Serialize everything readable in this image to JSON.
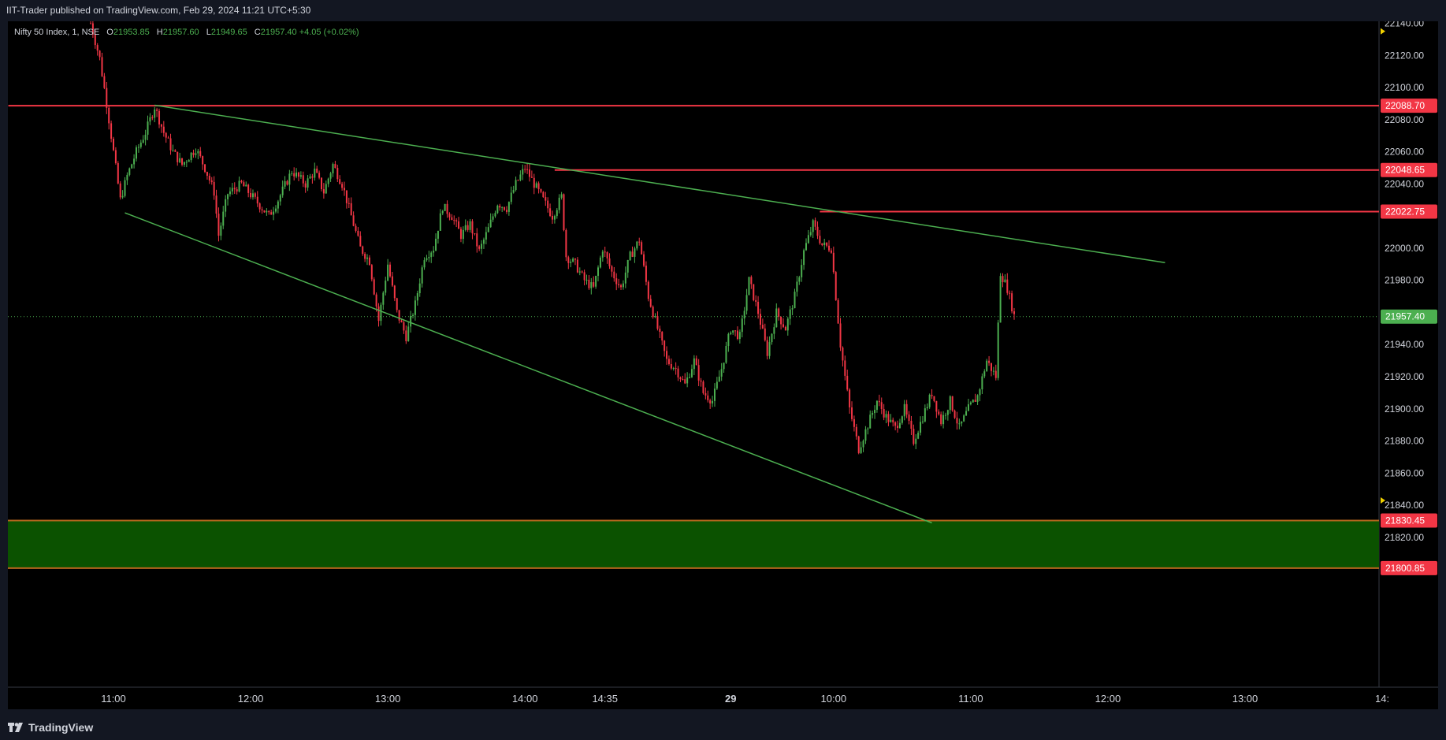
{
  "header": {
    "published": "IIT-Trader published on TradingView.com, Feb 29, 2024 11:21 UTC+5:30"
  },
  "legend": {
    "symbol": "Nifty 50 Index, 1, NSE",
    "o_label": "O",
    "o": "21953.85",
    "h_label": "H",
    "h": "21957.60",
    "l_label": "L",
    "l": "21949.65",
    "c_label": "C",
    "c": "21957.40",
    "change": "+4.05 (+0.02%)"
  },
  "footer": {
    "brand": "TradingView",
    "logo_icon": "tradingview-logo-icon"
  },
  "colors": {
    "up": "#4caf50",
    "down": "#f23645",
    "trend": "#4caf50",
    "level": "#f23645",
    "zone": "#0b5200",
    "zone_border": "#b5651d",
    "current": "#4caf50",
    "bg": "#000000"
  },
  "chart_data": {
    "type": "candlestick",
    "ylim": [
      21790,
      22145
    ],
    "y_ticks": [
      22140,
      22120,
      22100,
      22080,
      22060,
      22040,
      22000,
      21980,
      21940,
      21920,
      21900,
      21880,
      21860,
      21840,
      21820
    ],
    "y_tick_labels": [
      "22140.00",
      "22120.00",
      "22100.00",
      "22080.00",
      "22060.00",
      "22040.00",
      "22000.00",
      "21980.00",
      "21940.00",
      "21920.00",
      "21900.00",
      "21880.00",
      "21860.00",
      "21840.00",
      "21820.00"
    ],
    "x_ticks": [
      {
        "label": "11:00",
        "x": 0.0
      },
      {
        "label": "12:00",
        "x": 60
      },
      {
        "label": "13:00",
        "x": 120
      },
      {
        "label": "14:00",
        "x": 180
      },
      {
        "label": "14:35",
        "x": 215
      },
      {
        "label": "29",
        "x": 270,
        "bold": true
      },
      {
        "label": "10:00",
        "x": 315
      },
      {
        "label": "11:00",
        "x": 375
      },
      {
        "label": "12:00",
        "x": 435
      },
      {
        "label": "13:00",
        "x": 495
      },
      {
        "label": "14:",
        "x": 555
      }
    ],
    "x_range": [
      -46,
      557
    ],
    "current_price": 21957.4,
    "horizontal_levels": [
      {
        "price": 22088.7,
        "label": "22088.70",
        "from": -46
      },
      {
        "price": 22048.65,
        "label": "22048.65",
        "from": 193
      },
      {
        "price": 22022.75,
        "label": "22022.75",
        "from": 309
      }
    ],
    "zone": {
      "top": 21830.45,
      "bottom": 21800.85,
      "top_label": "21830.45",
      "bottom_label": "21800.85"
    },
    "trendlines": [
      {
        "x1": 18,
        "y1": 22089,
        "x2": 460,
        "y2": 21991
      },
      {
        "x1": 5,
        "y1": 22022,
        "x2": 358,
        "y2": 21829
      }
    ],
    "anchors": [
      [
        -10,
        22140
      ],
      [
        -6,
        22118
      ],
      [
        -3,
        22090
      ],
      [
        0,
        22060
      ],
      [
        3,
        22030
      ],
      [
        6,
        22045
      ],
      [
        10,
        22060
      ],
      [
        14,
        22072
      ],
      [
        18,
        22088
      ],
      [
        22,
        22072
      ],
      [
        26,
        22060
      ],
      [
        30,
        22052
      ],
      [
        36,
        22062
      ],
      [
        40,
        22050
      ],
      [
        44,
        22035
      ],
      [
        46,
        22008
      ],
      [
        50,
        22034
      ],
      [
        56,
        22040
      ],
      [
        62,
        22030
      ],
      [
        68,
        22020
      ],
      [
        72,
        22030
      ],
      [
        78,
        22048
      ],
      [
        84,
        22040
      ],
      [
        88,
        22048
      ],
      [
        92,
        22035
      ],
      [
        96,
        22052
      ],
      [
        100,
        22040
      ],
      [
        104,
        22020
      ],
      [
        108,
        22000
      ],
      [
        112,
        21992
      ],
      [
        116,
        21955
      ],
      [
        120,
        21990
      ],
      [
        124,
        21960
      ],
      [
        128,
        21945
      ],
      [
        132,
        21965
      ],
      [
        136,
        21995
      ],
      [
        140,
        22000
      ],
      [
        144,
        22026
      ],
      [
        148,
        22020
      ],
      [
        152,
        22008
      ],
      [
        156,
        22015
      ],
      [
        160,
        21998
      ],
      [
        164,
        22012
      ],
      [
        168,
        22028
      ],
      [
        172,
        22025
      ],
      [
        176,
        22040
      ],
      [
        180,
        22050
      ],
      [
        184,
        22040
      ],
      [
        188,
        22030
      ],
      [
        192,
        22020
      ],
      [
        196,
        22032
      ],
      [
        198,
        21995
      ],
      [
        202,
        21990
      ],
      [
        206,
        21980
      ],
      [
        210,
        21975
      ],
      [
        214,
        22000
      ],
      [
        218,
        21985
      ],
      [
        222,
        21975
      ],
      [
        226,
        21995
      ],
      [
        230,
        22005
      ],
      [
        234,
        21970
      ],
      [
        238,
        21950
      ],
      [
        242,
        21930
      ],
      [
        246,
        21925
      ],
      [
        250,
        21915
      ],
      [
        254,
        21930
      ],
      [
        258,
        21910
      ],
      [
        262,
        21905
      ],
      [
        266,
        21925
      ],
      [
        270,
        21950
      ],
      [
        274,
        21945
      ],
      [
        278,
        21980
      ],
      [
        282,
        21960
      ],
      [
        286,
        21935
      ],
      [
        290,
        21960
      ],
      [
        294,
        21950
      ],
      [
        298,
        21970
      ],
      [
        302,
        21998
      ],
      [
        306,
        22015
      ],
      [
        310,
        22002
      ],
      [
        314,
        22000
      ],
      [
        318,
        21940
      ],
      [
        322,
        21900
      ],
      [
        326,
        21875
      ],
      [
        330,
        21890
      ],
      [
        334,
        21905
      ],
      [
        338,
        21895
      ],
      [
        342,
        21888
      ],
      [
        346,
        21900
      ],
      [
        350,
        21880
      ],
      [
        354,
        21895
      ],
      [
        358,
        21910
      ],
      [
        362,
        21892
      ],
      [
        366,
        21905
      ],
      [
        370,
        21888
      ],
      [
        374,
        21900
      ],
      [
        378,
        21908
      ],
      [
        382,
        21930
      ],
      [
        386,
        21920
      ],
      [
        388,
        21985
      ],
      [
        391,
        21975
      ],
      [
        394,
        21958
      ]
    ]
  },
  "axis": {
    "right_edge_marker_icon": "yellow-triangle-icon"
  }
}
